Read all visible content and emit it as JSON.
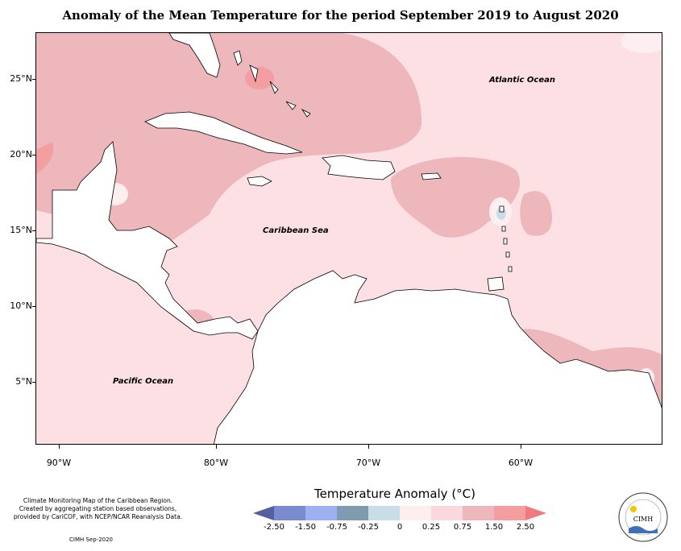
{
  "title": "Anomaly of the Mean Temperature for the period September 2019 to August 2020",
  "map": {
    "labels": {
      "atlantic": "Atlantic Ocean",
      "caribbean": "Caribbean Sea",
      "pacific": "Pacific Ocean"
    },
    "lat_ticks": [
      "25°N",
      "20°N",
      "15°N",
      "10°N",
      "5°N"
    ],
    "lon_ticks": [
      "90°W",
      "80°W",
      "70°W",
      "60°W"
    ]
  },
  "legend": {
    "title": "Temperature Anomaly (°C)",
    "bin_labels": [
      "-2.50",
      "-1.50",
      "-0.75",
      "-0.25",
      "0",
      "0.25",
      "0.75",
      "1.50",
      "2.50"
    ],
    "colors": {
      "lt_-2.50": "#5560a0",
      "-2.50_-1.50": "#7b8bd0",
      "-1.50_-0.75": "#9fb0f0",
      "-0.75_-0.25": "#7f9bb0",
      "-0.25_0": "#c9dde6",
      "0_0.25": "#fdeef0",
      "0.25_0.75": "#fbd8dd",
      "0.75_1.50": "#eeb7bc",
      "1.50_2.50": "#f49ea2",
      "gt_2.50": "#f07a80"
    }
  },
  "credits": {
    "line1": "Climate Monitoring Map of the Caribbean Region.",
    "line2": "Created by aggregating station based observations,",
    "line3": "provided by CariCOF, with NCEP/NCAR Reanalysis Data.",
    "stamp": "CIMH Sep-2020"
  },
  "logo": {
    "text": "CIMH",
    "icon": "cimh-logo-icon"
  }
}
